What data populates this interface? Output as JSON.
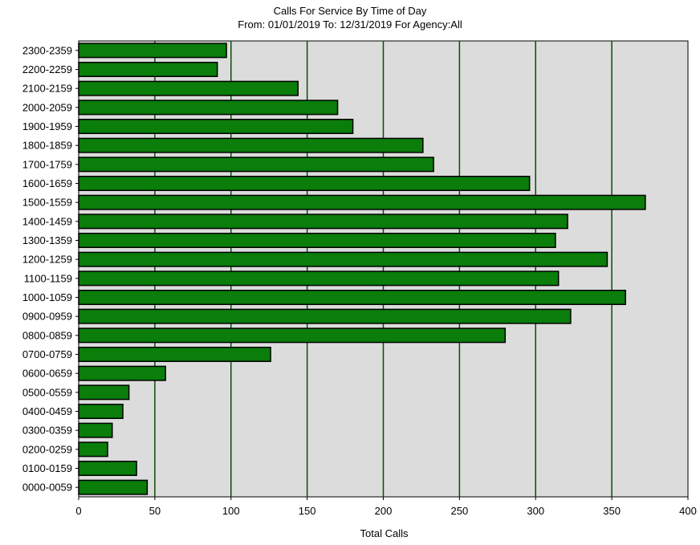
{
  "chart_data": {
    "type": "bar",
    "orientation": "horizontal",
    "title": "Calls For Service By Time of Day",
    "subtitle": "From: 01/01/2019    To: 12/31/2019 For Agency:All",
    "xlabel": "Total Calls",
    "ylabel": "",
    "xlim": [
      0,
      400
    ],
    "xticks": [
      0,
      50,
      100,
      150,
      200,
      250,
      300,
      350,
      400
    ],
    "grid": true,
    "categories": [
      "0000-0059",
      "0100-0159",
      "0200-0259",
      "0300-0359",
      "0400-0459",
      "0500-0559",
      "0600-0659",
      "0700-0759",
      "0800-0859",
      "0900-0959",
      "1000-1059",
      "1100-1159",
      "1200-1259",
      "1300-1359",
      "1400-1459",
      "1500-1559",
      "1600-1659",
      "1700-1759",
      "1800-1859",
      "1900-1959",
      "2000-2059",
      "2100-2159",
      "2200-2259",
      "2300-2359"
    ],
    "values": [
      45,
      38,
      19,
      22,
      29,
      33,
      57,
      126,
      280,
      323,
      359,
      315,
      347,
      313,
      321,
      372,
      296,
      233,
      226,
      180,
      170,
      144,
      91,
      97
    ],
    "colors": {
      "bar": "#0a7d0a",
      "bar_edge": "#000000",
      "plot_bg": "#dcdcdc",
      "grid": "#0a4d0a"
    }
  }
}
